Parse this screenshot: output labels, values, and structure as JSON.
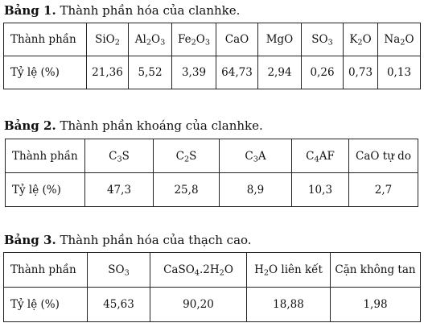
{
  "bang1": {
    "caption_bold": "Bảng 1.",
    "caption_text": "Thành phần hóa của clanhke.",
    "headers": [
      {
        "t": "Thành phần"
      },
      {
        "t": "SiO",
        "s": "2"
      },
      {
        "t": "Al",
        "s": "2",
        "t2": "O",
        "s2": "3"
      },
      {
        "t": "Fe",
        "s": "2",
        "t2": "O",
        "s2": "3"
      },
      {
        "t": "CaO"
      },
      {
        "t": "MgO"
      },
      {
        "t": "SO",
        "s": "3"
      },
      {
        "t": "K",
        "s": "2",
        "t2": "O"
      },
      {
        "t": "Na",
        "s": "2",
        "t2": "O"
      }
    ],
    "row_label": "Tỷ lệ (%)",
    "values": [
      "21,36",
      "5,52",
      "3,39",
      "64,73",
      "2,94",
      "0,26",
      "0,73",
      "0,13"
    ]
  },
  "bang2": {
    "caption_bold": "Bảng 2.",
    "caption_text": "Thành phần khoáng của clanhke.",
    "headers": [
      {
        "t": "Thành phần"
      },
      {
        "t": "C",
        "s": "3",
        "t2": "S"
      },
      {
        "t": "C",
        "s": "2",
        "t2": "S"
      },
      {
        "t": "C",
        "s": "3",
        "t2": "A"
      },
      {
        "t": "C",
        "s": "4",
        "t2": "AF"
      },
      {
        "t": "CaO tự do"
      }
    ],
    "row_label": "Tỷ lệ (%)",
    "values": [
      "47,3",
      "25,8",
      "8,9",
      "10,3",
      "2,7"
    ]
  },
  "bang3": {
    "caption_bold": "Bảng 3.",
    "caption_text": "Thành phần hóa của thạch cao.",
    "headers": [
      {
        "t": "Thành phần"
      },
      {
        "t": "SO",
        "s": "3"
      },
      {
        "t": "CaSO",
        "s": "4",
        "t2": ".2H",
        "s2": "2",
        "t3": "O"
      },
      {
        "t": "H",
        "s": "2",
        "t2": "O liên kết"
      },
      {
        "t": "Cặn không tan"
      }
    ],
    "row_label": "Tỷ lệ (%)",
    "values": [
      "45,63",
      "90,20",
      "18,88",
      "1,98"
    ]
  }
}
